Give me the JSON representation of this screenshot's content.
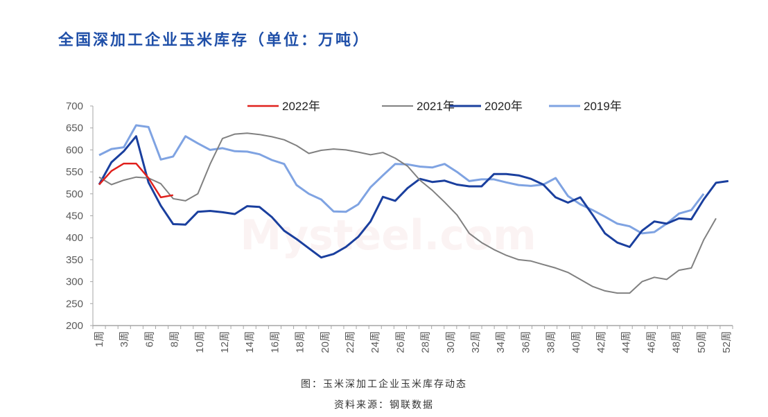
{
  "title": "全国深加工企业玉米库存（单位：万吨）",
  "caption": "图：玉米深加工企业玉米库存动态",
  "source": "资料来源：钢联数据",
  "watermark": "Mysteel.com",
  "chart_data": {
    "type": "line",
    "title": "全国深加工企业玉米库存（单位：万吨）",
    "xlabel": "",
    "ylabel": "",
    "ylim": [
      200,
      700
    ],
    "yticks": [
      200,
      250,
      300,
      350,
      400,
      450,
      500,
      550,
      600,
      650,
      700
    ],
    "x_tick_labels": [
      "1周",
      "3周",
      "6周",
      "8周",
      "10周",
      "12周",
      "14周",
      "16周",
      "18周",
      "20周",
      "22周",
      "24周",
      "26周",
      "28周",
      "30周",
      "32周",
      "34周",
      "36周",
      "38周",
      "40周",
      "42周",
      "44周",
      "46周",
      "48周",
      "50周",
      "52周"
    ],
    "grid": false,
    "legend": "top",
    "series": [
      {
        "name": "2022年",
        "color": "#e0201c",
        "width": 2.5,
        "values": [
          521,
          552,
          569,
          569,
          536,
          492,
          497
        ]
      },
      {
        "name": "2021年",
        "color": "#808080",
        "width": 2,
        "values": [
          538,
          521,
          531,
          538,
          536,
          523,
          489,
          484,
          500,
          568,
          626,
          636,
          638,
          635,
          630,
          623,
          610,
          592,
          599,
          602,
          600,
          595,
          589,
          594,
          581,
          563,
          531,
          508,
          481,
          452,
          410,
          389,
          373,
          360,
          350,
          347,
          339,
          331,
          321,
          305,
          289,
          279,
          274,
          274,
          300,
          310,
          305,
          326,
          331,
          395,
          444
        ]
      },
      {
        "name": "2020年",
        "color": "#1a3f9e",
        "width": 3,
        "values": [
          521,
          572,
          597,
          631,
          526,
          473,
          431,
          430,
          459,
          461,
          458,
          454,
          472,
          470,
          447,
          416,
          397,
          376,
          355,
          363,
          379,
          402,
          437,
          493,
          484,
          513,
          534,
          527,
          530,
          521,
          517,
          517,
          545,
          545,
          542,
          534,
          521,
          492,
          480,
          492,
          452,
          410,
          389,
          379,
          416,
          437,
          432,
          444,
          442,
          487,
          525,
          529
        ]
      },
      {
        "name": "2019年",
        "color": "#7fa3e2",
        "width": 3,
        "values": [
          588,
          602,
          606,
          656,
          652,
          578,
          585,
          631,
          615,
          600,
          604,
          597,
          596,
          590,
          577,
          568,
          520,
          500,
          487,
          460,
          459,
          476,
          515,
          542,
          568,
          567,
          562,
          560,
          568,
          550,
          529,
          533,
          533,
          526,
          520,
          518,
          521,
          536,
          495,
          476,
          463,
          448,
          432,
          426,
          410,
          413,
          432,
          455,
          463,
          500
        ]
      }
    ]
  }
}
